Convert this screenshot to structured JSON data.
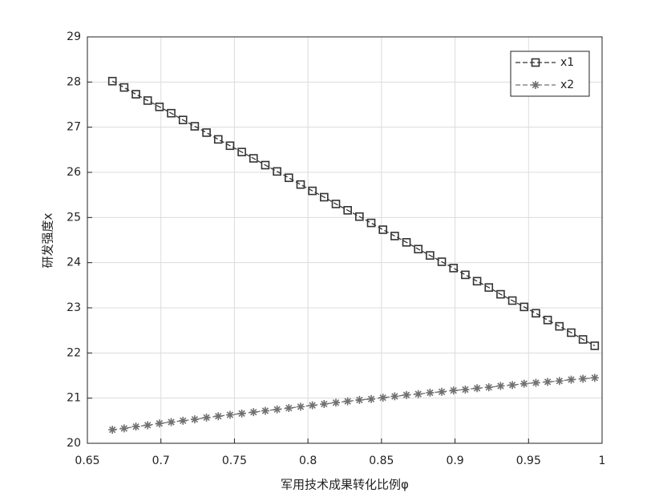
{
  "chart_data": {
    "type": "line",
    "xlabel": "军用技术成果转化比例φ",
    "ylabel": "研发强度x",
    "x": [
      0.667,
      0.675,
      0.683,
      0.691,
      0.699,
      0.707,
      0.715,
      0.723,
      0.731,
      0.739,
      0.747,
      0.755,
      0.763,
      0.771,
      0.779,
      0.787,
      0.795,
      0.803,
      0.811,
      0.819,
      0.827,
      0.835,
      0.843,
      0.851,
      0.859,
      0.867,
      0.875,
      0.883,
      0.891,
      0.899,
      0.907,
      0.915,
      0.923,
      0.931,
      0.939,
      0.947,
      0.955,
      0.963,
      0.971,
      0.979,
      0.987,
      0.995
    ],
    "series": [
      {
        "name": "x1",
        "color": "#333333",
        "marker": "square",
        "values": [
          28.02,
          27.88,
          27.73,
          27.59,
          27.45,
          27.31,
          27.16,
          27.02,
          26.88,
          26.73,
          26.59,
          26.45,
          26.31,
          26.16,
          26.02,
          25.88,
          25.73,
          25.59,
          25.45,
          25.3,
          25.16,
          25.02,
          24.88,
          24.73,
          24.59,
          24.45,
          24.3,
          24.16,
          24.02,
          23.88,
          23.73,
          23.59,
          23.45,
          23.3,
          23.16,
          23.02,
          22.88,
          22.73,
          22.59,
          22.45,
          22.3,
          22.16
        ]
      },
      {
        "name": "x2",
        "color": "#707070",
        "marker": "asterisk",
        "values": [
          20.3,
          20.33,
          20.37,
          20.4,
          20.44,
          20.47,
          20.5,
          20.53,
          20.57,
          20.6,
          20.63,
          20.66,
          20.69,
          20.72,
          20.75,
          20.78,
          20.81,
          20.84,
          20.87,
          20.9,
          20.93,
          20.96,
          20.98,
          21.01,
          21.04,
          21.07,
          21.09,
          21.12,
          21.14,
          21.17,
          21.19,
          21.22,
          21.24,
          21.27,
          21.29,
          21.32,
          21.34,
          21.36,
          21.38,
          21.41,
          21.43,
          21.45
        ]
      }
    ],
    "xlim": [
      0.65,
      1
    ],
    "xticks": [
      0.65,
      0.7,
      0.75,
      0.8,
      0.85,
      0.9,
      0.95,
      1
    ],
    "ylim": [
      20,
      29
    ],
    "yticks": [
      20,
      21,
      22,
      23,
      24,
      25,
      26,
      27,
      28,
      29
    ],
    "grid": true,
    "legend": "upper-right",
    "line_style": "dashed"
  }
}
